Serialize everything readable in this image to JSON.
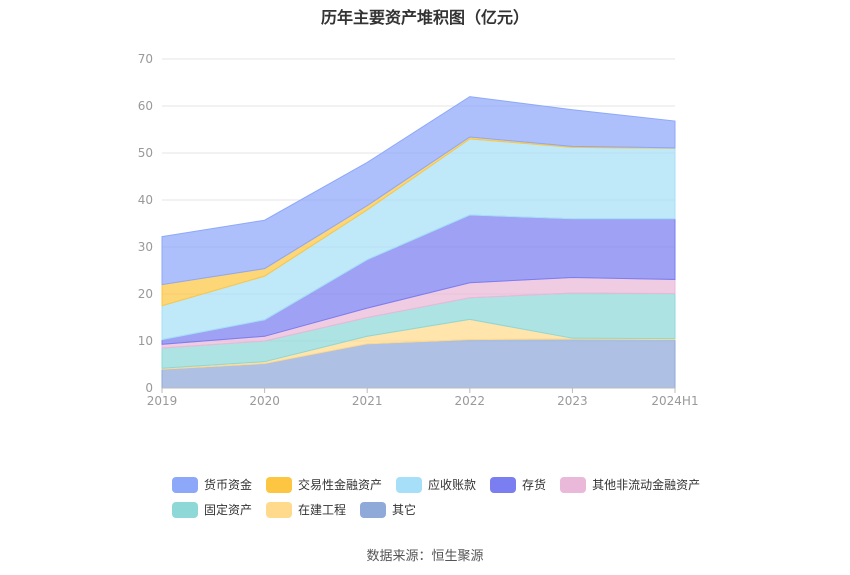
{
  "chart_data": {
    "type": "area",
    "stacked": true,
    "title": "历年主要资产堆积图（亿元）",
    "categories": [
      "2019",
      "2020",
      "2021",
      "2022",
      "2023",
      "2024H1"
    ],
    "ylim": [
      0,
      70
    ],
    "yticks": [
      "0",
      "10",
      "20",
      "30",
      "40",
      "50",
      "60",
      "70"
    ],
    "legend_position": "bottom",
    "series": [
      {
        "name": "其它",
        "color": "#8fa9d9",
        "values": [
          4.0,
          5.2,
          9.4,
          10.3,
          10.4,
          10.3
        ]
      },
      {
        "name": "在建工程",
        "color": "#ffd98c",
        "values": [
          0.2,
          0.4,
          1.6,
          4.3,
          0.2,
          0.2
        ]
      },
      {
        "name": "固定资产",
        "color": "#8ed8d8",
        "values": [
          4.3,
          4.4,
          4.0,
          4.6,
          9.6,
          9.6
        ]
      },
      {
        "name": "其他非流动金融资产",
        "color": "#eab8d8",
        "values": [
          0.8,
          1.0,
          2.0,
          3.2,
          3.3,
          3.0
        ]
      },
      {
        "name": "存货",
        "color": "#7a7ef0",
        "values": [
          1.0,
          3.5,
          10.3,
          14.4,
          12.5,
          12.9
        ]
      },
      {
        "name": "应收账款",
        "color": "#a6dff7",
        "values": [
          7.2,
          9.3,
          10.6,
          16.2,
          15.2,
          15.0
        ]
      },
      {
        "name": "交易性金融资产",
        "color": "#fcc642",
        "values": [
          4.5,
          1.6,
          0.9,
          0.4,
          0.2,
          0.1
        ]
      },
      {
        "name": "货币资金",
        "color": "#8ea8f9",
        "values": [
          10.2,
          10.3,
          9.2,
          8.6,
          7.8,
          5.7
        ]
      }
    ]
  },
  "legend": {
    "row1": [
      {
        "label": "货币资金",
        "color": "#8ea8f9"
      },
      {
        "label": "交易性金融资产",
        "color": "#fcc642"
      },
      {
        "label": "应收账款",
        "color": "#a6dff7"
      },
      {
        "label": "存货",
        "color": "#7a7ef0"
      },
      {
        "label": "其他非流动金融资产",
        "color": "#eab8d8"
      }
    ],
    "row2": [
      {
        "label": "固定资产",
        "color": "#8ed8d8"
      },
      {
        "label": "在建工程",
        "color": "#ffd98c"
      },
      {
        "label": "其它",
        "color": "#8fa9d9"
      }
    ]
  },
  "source_text": "数据来源：恒生聚源"
}
